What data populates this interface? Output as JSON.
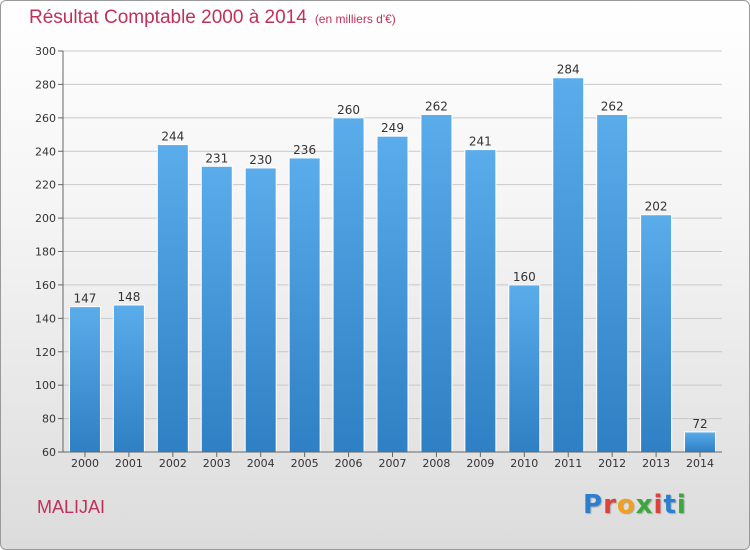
{
  "chart_data": {
    "type": "bar",
    "title": "Résultat Comptable 2000 à 2014",
    "subtitle": "(en milliers d'€)",
    "categories": [
      "2000",
      "2001",
      "2002",
      "2003",
      "2004",
      "2005",
      "2006",
      "2007",
      "2008",
      "2009",
      "2010",
      "2011",
      "2012",
      "2013",
      "2014"
    ],
    "values": [
      147,
      148,
      244,
      231,
      230,
      236,
      260,
      249,
      262,
      241,
      160,
      284,
      262,
      202,
      72
    ],
    "ylim": [
      60,
      300
    ],
    "yticks": [
      60,
      80,
      100,
      120,
      140,
      160,
      180,
      200,
      220,
      240,
      260,
      280,
      300
    ],
    "grid": true,
    "bar_color": "#3a8fd6"
  },
  "footer": {
    "commune": "MALIJAI",
    "logo_letters": [
      {
        "ch": "P",
        "color": "#2a7fd0"
      },
      {
        "ch": "r",
        "color": "#e0403a"
      },
      {
        "ch": "o",
        "color": "#f0a020"
      },
      {
        "ch": "x",
        "color": "#3aa83a"
      },
      {
        "ch": "i",
        "color": "#e0403a"
      },
      {
        "ch": "t",
        "color": "#2a7fd0"
      },
      {
        "ch": "i",
        "color": "#3aa83a"
      }
    ]
  }
}
